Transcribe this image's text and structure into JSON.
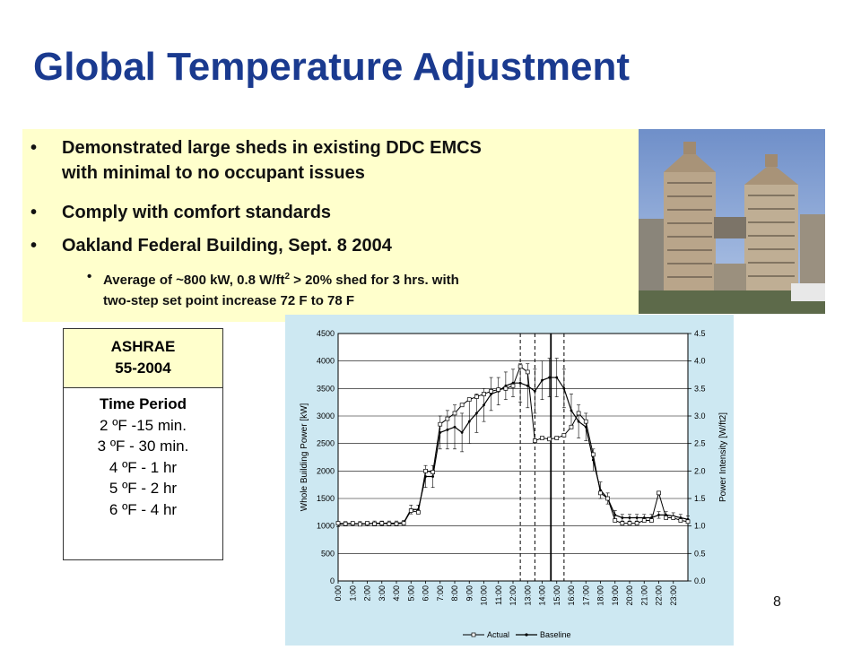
{
  "slide": {
    "title": "Global Temperature Adjustment",
    "page_number": "8"
  },
  "bullets": [
    {
      "line1": "Demonstrated large sheds in existing DDC EMCS",
      "line2": "with minimal to no occupant issues"
    },
    {
      "line1": "Comply with comfort standards"
    },
    {
      "line1": "Oakland Federal Building, Sept. 8 2004"
    }
  ],
  "sub_bullet": {
    "line1_pre": "Average of ~800 kW, 0.8 W/ft",
    "line1_sup": "2",
    "line1_post": " > 20% shed for 3 hrs. with",
    "line2": "two-step set point increase 72 F to 78 F"
  },
  "ashrae_table": {
    "header_line1": "ASHRAE",
    "header_line2": "55-2004",
    "period_title": "Time Period",
    "rows": [
      "2 ºF -15 min.",
      "3 ºF - 30 min.",
      "4 ºF - 1 hr",
      "5 ºF - 2 hr",
      "6 ºF - 4 hr"
    ]
  },
  "chart_data": {
    "type": "line",
    "ylabel": "Whole Building Power [kW]",
    "y2label": "Power Intensity [W/ft2]",
    "ylim": [
      0,
      4500
    ],
    "y2lim": [
      0,
      4.5
    ],
    "yticks": [
      0,
      500,
      1000,
      1500,
      2000,
      2500,
      3000,
      3500,
      4000,
      4500
    ],
    "y2ticks": [
      "0.0",
      "0.5",
      "1.0",
      "1.5",
      "2.0",
      "2.5",
      "3.0",
      "3.5",
      "4.0",
      "4.5"
    ],
    "xlim": [
      0,
      24
    ],
    "categories": [
      "0:00",
      "1:00",
      "2:00",
      "3:00",
      "4:00",
      "5:00",
      "6:00",
      "7:00",
      "8:00",
      "9:00",
      "10:00",
      "11:00",
      "12:00",
      "13:00",
      "14:00",
      "15:00",
      "16:00",
      "17:00",
      "18:00",
      "19:00",
      "20:00",
      "21:00",
      "22:00",
      "23:00"
    ],
    "vlines_dashed": [
      12.5,
      13.5,
      15.5
    ],
    "vline_solid": 14.6,
    "legend_position": "bottom",
    "series": [
      {
        "name": "Actual",
        "marker": "square",
        "x": [
          0,
          0.5,
          1,
          1.5,
          2,
          2.5,
          3,
          3.5,
          4,
          4.5,
          5,
          5.5,
          6,
          6.5,
          7,
          7.5,
          8,
          8.5,
          9,
          9.5,
          10,
          10.5,
          11,
          11.5,
          12,
          12.5,
          13,
          13.5,
          14,
          14.5,
          15,
          15.5,
          16,
          16.5,
          17,
          17.5,
          18,
          18.5,
          19,
          19.5,
          20,
          20.5,
          21,
          21.5,
          22,
          22.5,
          23,
          23.5,
          24
        ],
        "y": [
          1050,
          1040,
          1050,
          1030,
          1050,
          1040,
          1050,
          1040,
          1040,
          1050,
          1280,
          1250,
          2000,
          1980,
          2850,
          2950,
          3050,
          3200,
          3300,
          3350,
          3400,
          3450,
          3480,
          3500,
          3550,
          3900,
          3800,
          2550,
          2600,
          2580,
          2600,
          2650,
          2800,
          3050,
          2900,
          2300,
          1600,
          1500,
          1100,
          1050,
          1050,
          1050,
          1100,
          1100,
          1600,
          1150,
          1150,
          1100,
          1080
        ]
      },
      {
        "name": "Baseline",
        "marker": "dot",
        "x": [
          0,
          0.5,
          1,
          1.5,
          2,
          2.5,
          3,
          3.5,
          4,
          4.5,
          5,
          5.5,
          6,
          6.5,
          7,
          7.5,
          8,
          8.5,
          9,
          9.5,
          10,
          10.5,
          11,
          11.5,
          12,
          12.5,
          13,
          13.5,
          14,
          14.5,
          15,
          15.5,
          16,
          16.5,
          17,
          17.5,
          18,
          18.5,
          19,
          19.5,
          20,
          20.5,
          21,
          21.5,
          22,
          22.5,
          23,
          23.5,
          24
        ],
        "y": [
          1030,
          1040,
          1040,
          1040,
          1040,
          1050,
          1050,
          1050,
          1050,
          1060,
          1300,
          1300,
          1900,
          1900,
          2700,
          2750,
          2800,
          2700,
          2900,
          3050,
          3200,
          3400,
          3450,
          3550,
          3600,
          3600,
          3550,
          3450,
          3650,
          3700,
          3700,
          3500,
          3100,
          2900,
          2800,
          2200,
          1650,
          1500,
          1200,
          1150,
          1150,
          1150,
          1150,
          1150,
          1200,
          1200,
          1180,
          1150,
          1120
        ],
        "err": [
          40,
          40,
          40,
          40,
          40,
          40,
          40,
          40,
          40,
          40,
          80,
          80,
          200,
          200,
          300,
          350,
          400,
          350,
          400,
          350,
          300,
          300,
          250,
          250,
          250,
          350,
          400,
          400,
          350,
          350,
          350,
          350,
          300,
          300,
          250,
          200,
          150,
          100,
          80,
          60,
          60,
          60,
          60,
          60,
          60,
          60,
          60,
          60,
          60
        ]
      }
    ]
  }
}
